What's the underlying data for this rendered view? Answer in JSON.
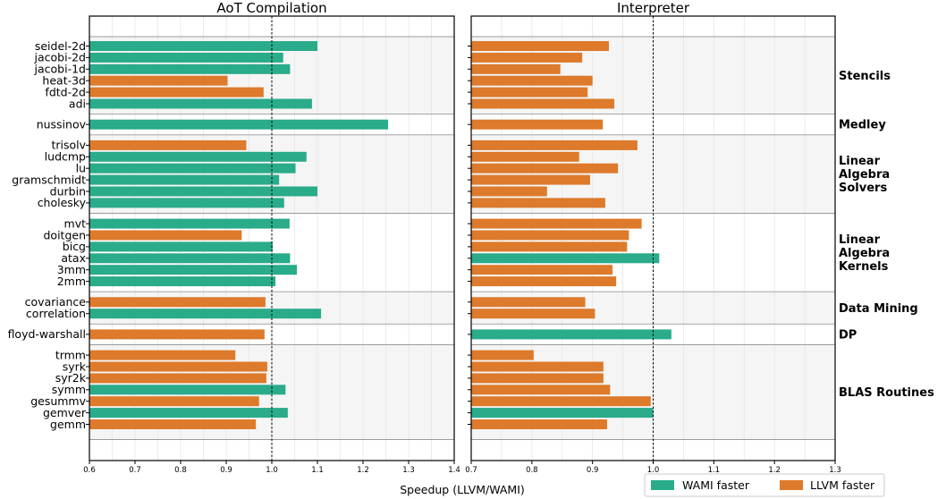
{
  "colors": {
    "wami": "#2aab8a",
    "llvm": "#dd7a2b",
    "band": "#f5f5f5"
  },
  "xlabel": "Speedup (LLVM/WAMI)",
  "legend": {
    "placement": "bottom-right",
    "items": [
      "WAMI faster",
      "LLVM faster"
    ]
  },
  "groups": [
    {
      "label": [
        "Stencils"
      ],
      "shaded": true
    },
    {
      "label": [
        "Medley"
      ],
      "shaded": false
    },
    {
      "label": [
        "Linear",
        "Algebra",
        "Solvers"
      ],
      "shaded": true
    },
    {
      "label": [
        "Linear",
        "Algebra",
        "Kernels"
      ],
      "shaded": false
    },
    {
      "label": [
        "Data Mining"
      ],
      "shaded": true
    },
    {
      "label": [
        "DP"
      ],
      "shaded": false
    },
    {
      "label": [
        "BLAS Routines"
      ],
      "shaded": true
    }
  ],
  "chart_data": {
    "type": "bar",
    "orientation": "horizontal",
    "categories": [
      "seidel-2d",
      "jacobi-2d",
      "jacobi-1d",
      "heat-3d",
      "fdtd-2d",
      "adi",
      "nussinov",
      "trisolv",
      "ludcmp",
      "lu",
      "gramschmidt",
      "durbin",
      "cholesky",
      "mvt",
      "doitgen",
      "bicg",
      "atax",
      "3mm",
      "2mm",
      "covariance",
      "correlation",
      "floyd-warshall",
      "trmm",
      "syrk",
      "syr2k",
      "symm",
      "gesummv",
      "gemver",
      "gemm"
    ],
    "category_group": [
      0,
      0,
      0,
      0,
      0,
      0,
      1,
      2,
      2,
      2,
      2,
      2,
      2,
      3,
      3,
      3,
      3,
      3,
      3,
      4,
      4,
      5,
      6,
      6,
      6,
      6,
      6,
      6,
      6
    ],
    "panels": [
      {
        "title": "AoT Compilation",
        "xlim": [
          0.6,
          1.4
        ],
        "xticks": [
          "0.6",
          "0.7",
          "0.8",
          "0.9",
          "1.0",
          "1.1",
          "1.2",
          "1.3",
          "1.4"
        ],
        "reference_line": 1.0,
        "values": [
          1.1,
          1.025,
          1.04,
          0.903,
          0.982,
          1.088,
          1.255,
          0.944,
          1.076,
          1.052,
          1.016,
          1.1,
          1.027,
          1.039,
          0.934,
          1.002,
          1.04,
          1.055,
          1.008,
          0.986,
          1.108,
          0.984,
          0.92,
          0.99,
          0.988,
          1.03,
          0.972,
          1.035,
          0.965
        ]
      },
      {
        "title": "Interpreter",
        "xlim": [
          0.7,
          1.3
        ],
        "xticks": [
          "0.7",
          "0.8",
          "0.9",
          "1.0",
          "1.1",
          "1.2",
          "1.3"
        ],
        "reference_line": 1.0,
        "values": [
          0.927,
          0.883,
          0.847,
          0.9,
          0.892,
          0.936,
          0.917,
          0.974,
          0.878,
          0.942,
          0.896,
          0.825,
          0.921,
          0.981,
          0.96,
          0.957,
          1.01,
          0.933,
          0.939,
          0.888,
          0.904,
          1.03,
          0.803,
          0.918,
          0.918,
          0.929,
          0.996,
          1.0,
          0.924
        ]
      }
    ]
  }
}
